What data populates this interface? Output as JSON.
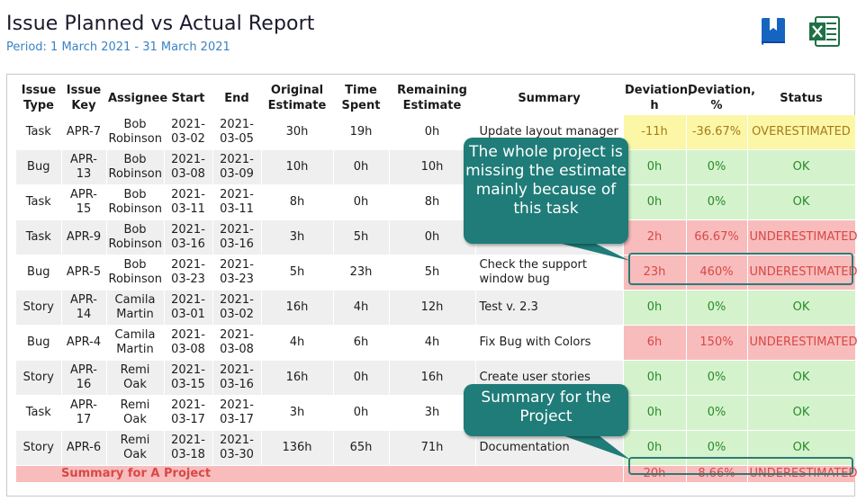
{
  "header": {
    "title": "Issue Planned vs Actual Report",
    "period": "Period: 1 March 2021 - 31 March 2021"
  },
  "icons": {
    "bookmark": "bookmark-icon",
    "excel": "excel-icon"
  },
  "colors": {
    "ok_bg": "#d4f3cd",
    "over_bg": "#fbf7a6",
    "under_bg": "#f8bcbc",
    "callout": "#1f7c78"
  },
  "columns": {
    "type": "Issue Type",
    "key": "Issue Key",
    "assignee": "Assignee",
    "start": "Start",
    "end": "End",
    "original": "Original Estimate",
    "spent": "Time Spent",
    "remaining": "Remaining Estimate",
    "summary": "Summary",
    "dev_h": "Deviation, h",
    "dev_pct": "Deviation, %",
    "status": "Status"
  },
  "rows": [
    {
      "type": "Task",
      "key": "APR-7",
      "assignee": "Bob Robinson",
      "start": "2021-03-02",
      "end": "2021-03-05",
      "original": "30h",
      "spent": "19h",
      "remaining": "0h",
      "summary": "Update layout manager",
      "dev_h": "-11h",
      "dev_pct": "-36.67%",
      "status": "OVERESTIMATED",
      "tone": "over"
    },
    {
      "type": "Bug",
      "key": "APR-13",
      "assignee": "Bob Robinson",
      "start": "2021-03-08",
      "end": "2021-03-09",
      "original": "10h",
      "spent": "0h",
      "remaining": "10h",
      "summary": "",
      "dev_h": "0h",
      "dev_pct": "0%",
      "status": "OK",
      "tone": "ok"
    },
    {
      "type": "Task",
      "key": "APR-15",
      "assignee": "Bob Robinson",
      "start": "2021-03-11",
      "end": "2021-03-11",
      "original": "8h",
      "spent": "0h",
      "remaining": "8h",
      "summary": "",
      "dev_h": "0h",
      "dev_pct": "0%",
      "status": "OK",
      "tone": "ok"
    },
    {
      "type": "Task",
      "key": "APR-9",
      "assignee": "Bob Robinson",
      "start": "2021-03-16",
      "end": "2021-03-16",
      "original": "3h",
      "spent": "5h",
      "remaining": "0h",
      "summary": "",
      "dev_h": "2h",
      "dev_pct": "66.67%",
      "status": "UNDERESTIMATED",
      "tone": "under"
    },
    {
      "type": "Bug",
      "key": "APR-5",
      "assignee": "Bob Robinson",
      "start": "2021-03-23",
      "end": "2021-03-23",
      "original": "5h",
      "spent": "23h",
      "remaining": "5h",
      "summary": "Check the support window bug",
      "dev_h": "23h",
      "dev_pct": "460%",
      "status": "UNDERESTIMATED",
      "tone": "under"
    },
    {
      "type": "Story",
      "key": "APR-14",
      "assignee": "Camila Martin",
      "start": "2021-03-01",
      "end": "2021-03-02",
      "original": "16h",
      "spent": "4h",
      "remaining": "12h",
      "summary": "Test v. 2.3",
      "dev_h": "0h",
      "dev_pct": "0%",
      "status": "OK",
      "tone": "ok"
    },
    {
      "type": "Bug",
      "key": "APR-4",
      "assignee": "Camila Martin",
      "start": "2021-03-08",
      "end": "2021-03-08",
      "original": "4h",
      "spent": "6h",
      "remaining": "4h",
      "summary": "Fix Bug with Colors",
      "dev_h": "6h",
      "dev_pct": "150%",
      "status": "UNDERESTIMATED",
      "tone": "under"
    },
    {
      "type": "Story",
      "key": "APR-16",
      "assignee": "Remi Oak",
      "start": "2021-03-15",
      "end": "2021-03-16",
      "original": "16h",
      "spent": "0h",
      "remaining": "16h",
      "summary": "Create user stories",
      "dev_h": "0h",
      "dev_pct": "0%",
      "status": "OK",
      "tone": "ok"
    },
    {
      "type": "Task",
      "key": "APR-17",
      "assignee": "Remi Oak",
      "start": "2021-03-17",
      "end": "2021-03-17",
      "original": "3h",
      "spent": "0h",
      "remaining": "3h",
      "summary": "",
      "dev_h": "0h",
      "dev_pct": "0%",
      "status": "OK",
      "tone": "ok"
    },
    {
      "type": "Story",
      "key": "APR-6",
      "assignee": "Remi Oak",
      "start": "2021-03-18",
      "end": "2021-03-30",
      "original": "136h",
      "spent": "65h",
      "remaining": "71h",
      "summary": "Documentation",
      "dev_h": "0h",
      "dev_pct": "0%",
      "status": "OK",
      "tone": "ok"
    }
  ],
  "summary_row": {
    "label": "Summary for A Project",
    "dev_h": "20h",
    "dev_pct": "8.66%",
    "status": "UNDERESTIMATED"
  },
  "callouts": {
    "task": "The whole project is missing the estimate mainly because of this task",
    "project": "Summary for the Project"
  }
}
